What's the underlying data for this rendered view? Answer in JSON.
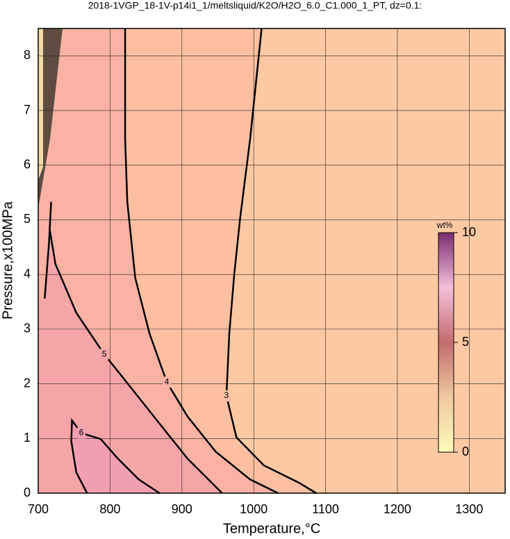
{
  "chart_data": {
    "type": "contour",
    "title": "2018-1VGP_18-1V-p14i1_1/meltsliquid/K2O/H2O_6.0_C1.000_1_PT, dz=0.1:",
    "x_label": "Temperature,°C",
    "y_label": "Pressure,x100MPa",
    "xlim": [
      700,
      1350
    ],
    "ylim": [
      0,
      8.5
    ],
    "xticks": [
      700,
      800,
      900,
      1000,
      1100,
      1200,
      1300
    ],
    "yticks": [
      0,
      1,
      2,
      3,
      4,
      5,
      6,
      7,
      8
    ],
    "grid": true,
    "colorbar": {
      "label": "wt%",
      "lim": [
        0,
        10
      ],
      "ticks": [
        0,
        5,
        10
      ]
    },
    "contours": [
      {
        "level": 3,
        "color": "#fcbfa2",
        "x": [
          1011,
          995,
          981,
          973,
          966,
          962,
          976,
          1014,
          1063,
          1087
        ],
        "y": [
          8.5,
          6.48,
          5.02,
          4.01,
          2.92,
          1.78,
          1.02,
          0.51,
          0.19,
          0
        ]
      },
      {
        "level": 4,
        "color": "#f9b2a4",
        "x": [
          821,
          821,
          824,
          835,
          855,
          879,
          908,
          947,
          995,
          1034
        ],
        "y": [
          8.5,
          6.48,
          5.33,
          3.94,
          2.92,
          2.03,
          1.4,
          0.76,
          0.25,
          0
        ]
      },
      {
        "level": 5,
        "color": "#f5a5a8",
        "x": [
          709,
          715,
          718,
          716,
          724,
          753,
          792,
          831,
          869,
          908,
          937,
          956
        ],
        "y": [
          3.56,
          4.57,
          5.33,
          4.83,
          4.19,
          3.3,
          2.54,
          1.9,
          1.27,
          0.63,
          0.25,
          0
        ]
      },
      {
        "level": 6,
        "color": "#f29fb2",
        "x": [
          768,
          753,
          746,
          747,
          760,
          787,
          811,
          840,
          869
        ],
        "y": [
          0,
          0.38,
          0.95,
          1.33,
          1.1,
          0.99,
          0.63,
          0.25,
          0
        ]
      }
    ]
  }
}
